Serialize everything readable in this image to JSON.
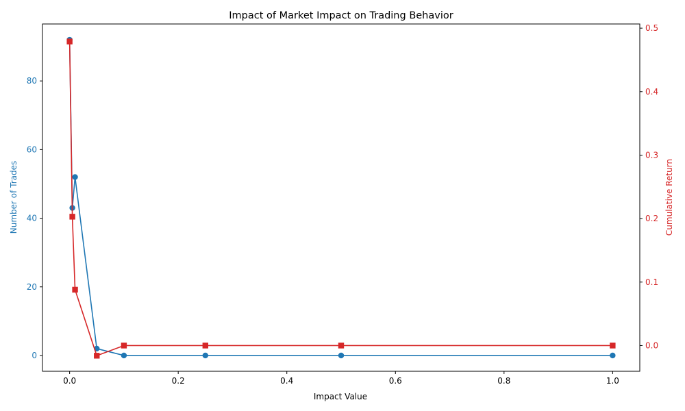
{
  "chart_data": {
    "type": "line",
    "title": "Impact of Market Impact on Trading Behavior",
    "xlabel": "Impact Value",
    "ylabel_left": "Number of Trades",
    "ylabel_right": "Cumulative Return",
    "xlim": [
      -0.05,
      1.05
    ],
    "ylim_left": [
      -4.6,
      96.6
    ],
    "ylim_right": [
      -0.0405,
      0.5066
    ],
    "xticks": [
      0.0,
      0.2,
      0.4,
      0.6,
      0.8,
      1.0
    ],
    "xtick_labels": [
      "0.0",
      "0.2",
      "0.4",
      "0.6",
      "0.8",
      "1.0"
    ],
    "yticks_left": [
      0,
      20,
      40,
      60,
      80
    ],
    "ytick_labels_left": [
      "0",
      "20",
      "40",
      "60",
      "80"
    ],
    "yticks_right": [
      0.0,
      0.1,
      0.2,
      0.3,
      0.4,
      0.5
    ],
    "ytick_labels_right": [
      "0.0",
      "0.1",
      "0.2",
      "0.3",
      "0.4",
      "0.5"
    ],
    "grid": false,
    "series": [
      {
        "axis": "left",
        "color": "#1f77b4",
        "marker": "circle",
        "x": [
          0.0,
          0.005,
          0.01,
          0.05,
          0.1,
          0.25,
          0.5,
          1.0
        ],
        "values": [
          92,
          43,
          52,
          2,
          0,
          0,
          0,
          0
        ]
      },
      {
        "axis": "right",
        "color": "#d62728",
        "marker": "square",
        "x": [
          0.0,
          0.005,
          0.01,
          0.05,
          0.1,
          0.25,
          0.5,
          1.0
        ],
        "values": [
          0.479,
          0.203,
          0.088,
          -0.016,
          0.0,
          0.0,
          0.0,
          0.0
        ]
      }
    ]
  }
}
